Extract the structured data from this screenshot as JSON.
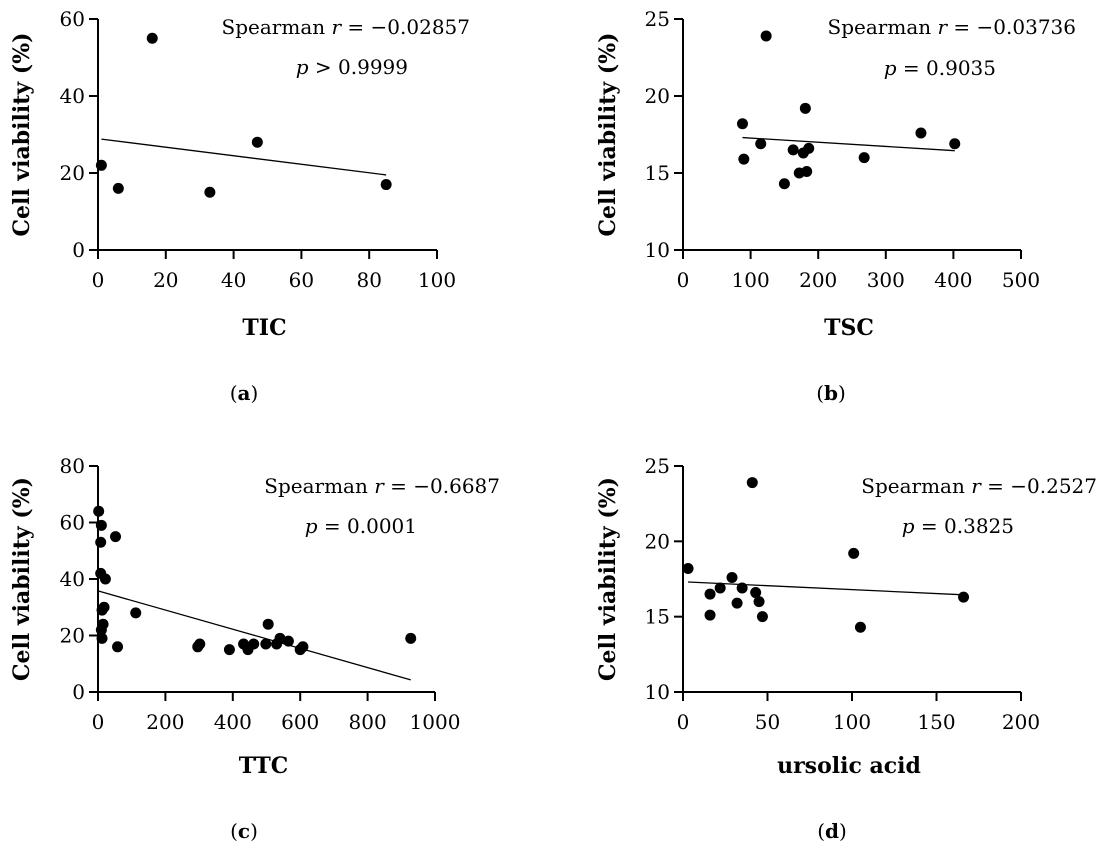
{
  "figure": {
    "panels": [
      {
        "id": "a",
        "label_letter": "a"
      },
      {
        "id": "b",
        "label_letter": "b"
      },
      {
        "id": "c",
        "label_letter": "c"
      },
      {
        "id": "d",
        "label_letter": "d"
      }
    ]
  },
  "chart_data": [
    {
      "panel": "a",
      "type": "scatter",
      "xlabel": "TIC",
      "ylabel": "Cell viability (%)",
      "xlim": [
        0,
        100
      ],
      "ylim": [
        0,
        60
      ],
      "xticks": [
        0,
        20,
        40,
        60,
        80,
        100
      ],
      "yticks": [
        0,
        20,
        40,
        60
      ],
      "points": [
        [
          1,
          22
        ],
        [
          6,
          16
        ],
        [
          16,
          55
        ],
        [
          33,
          15
        ],
        [
          47,
          28
        ],
        [
          85,
          17
        ]
      ],
      "fit_line": {
        "x": [
          1,
          85
        ],
        "y": [
          28.8,
          19.5
        ]
      },
      "annotation": {
        "stat_label": "Spearman ",
        "r_symbol": "r",
        "r_text": " = −0.02857",
        "p_symbol": "p",
        "p_text": " > 0.9999"
      }
    },
    {
      "panel": "b",
      "type": "scatter",
      "xlabel": "TSC",
      "ylabel": "Cell viability (%)",
      "xlim": [
        0,
        500
      ],
      "ylim": [
        10,
        25
      ],
      "xticks": [
        0,
        100,
        200,
        300,
        400,
        500
      ],
      "yticks": [
        10,
        15,
        20,
        25
      ],
      "points": [
        [
          88,
          18.2
        ],
        [
          90,
          15.9
        ],
        [
          115,
          16.9
        ],
        [
          123,
          23.9
        ],
        [
          150,
          14.3
        ],
        [
          163,
          16.5
        ],
        [
          172,
          15.0
        ],
        [
          178,
          16.3
        ],
        [
          181,
          19.2
        ],
        [
          183,
          15.1
        ],
        [
          186,
          16.6
        ],
        [
          268,
          16.0
        ],
        [
          352,
          17.6
        ],
        [
          402,
          16.9
        ]
      ],
      "fit_line": {
        "x": [
          88,
          402
        ],
        "y": [
          17.3,
          16.45
        ]
      },
      "annotation": {
        "stat_label": "Spearman ",
        "r_symbol": "r",
        "r_text": " = −0.03736",
        "p_symbol": "p",
        "p_text": " = 0.9035"
      }
    },
    {
      "panel": "c",
      "type": "scatter",
      "xlabel": "TTC",
      "ylabel": "Cell viability (%)",
      "xlim": [
        0,
        1000
      ],
      "ylim": [
        0,
        80
      ],
      "xticks": [
        0,
        200,
        400,
        600,
        800,
        1000
      ],
      "yticks": [
        0,
        20,
        40,
        60,
        80
      ],
      "points": [
        [
          2,
          64
        ],
        [
          10,
          59
        ],
        [
          8,
          53
        ],
        [
          8,
          42
        ],
        [
          12,
          29
        ],
        [
          18,
          30
        ],
        [
          22,
          40
        ],
        [
          15,
          24
        ],
        [
          10,
          22
        ],
        [
          12,
          19
        ],
        [
          52,
          55
        ],
        [
          58,
          16
        ],
        [
          112,
          28
        ],
        [
          296,
          16
        ],
        [
          302,
          17
        ],
        [
          390,
          15
        ],
        [
          432,
          17
        ],
        [
          445,
          15
        ],
        [
          462,
          17
        ],
        [
          498,
          17
        ],
        [
          505,
          24
        ],
        [
          530,
          17
        ],
        [
          540,
          19
        ],
        [
          565,
          18
        ],
        [
          600,
          15
        ],
        [
          608,
          16
        ],
        [
          928,
          19
        ]
      ],
      "fit_line": {
        "x": [
          0,
          928
        ],
        "y": [
          35.8,
          4.3
        ]
      },
      "annotation": {
        "stat_label": "Spearman ",
        "r_symbol": "r",
        "r_text": " = −0.6687",
        "p_symbol": "p",
        "p_text": " = 0.0001"
      }
    },
    {
      "panel": "d",
      "type": "scatter",
      "xlabel": "ursolic acid",
      "ylabel": "Cell viability (%)",
      "xlim": [
        0,
        200
      ],
      "ylim": [
        10,
        25
      ],
      "xticks": [
        0,
        50,
        100,
        150,
        200
      ],
      "yticks": [
        10,
        15,
        20,
        25
      ],
      "points": [
        [
          3,
          18.2
        ],
        [
          16,
          16.5
        ],
        [
          16,
          15.1
        ],
        [
          22,
          16.9
        ],
        [
          29,
          17.6
        ],
        [
          32,
          15.9
        ],
        [
          35,
          16.9
        ],
        [
          41,
          23.9
        ],
        [
          43,
          16.6
        ],
        [
          45,
          16.0
        ],
        [
          47,
          15.0
        ],
        [
          101,
          19.2
        ],
        [
          105,
          14.3
        ],
        [
          166,
          16.3
        ]
      ],
      "fit_line": {
        "x": [
          3,
          166
        ],
        "y": [
          17.3,
          16.45
        ]
      },
      "annotation": {
        "stat_label": "Spearman ",
        "r_symbol": "r",
        "r_text": " = −0.2527",
        "p_symbol": "p",
        "p_text": " = 0.3825"
      }
    }
  ]
}
